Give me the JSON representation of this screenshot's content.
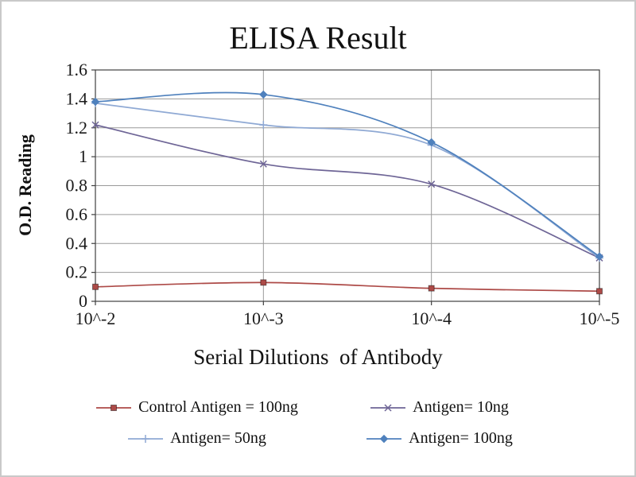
{
  "chart_data": {
    "type": "line",
    "title": "ELISA Result",
    "xlabel": "Serial Dilutions  of Antibody",
    "ylabel": "O.D. Reading",
    "categories": [
      "10^-2",
      "10^-3",
      "10^-4",
      "10^-5"
    ],
    "ylim": [
      0,
      1.6
    ],
    "yticks": [
      "0",
      "0.2",
      "0.4",
      "0.6",
      "0.8",
      "1",
      "1.2",
      "1.4",
      "1.6"
    ],
    "grid": true,
    "legend_position": "bottom",
    "colors": {
      "grid": "#9a9a9a",
      "axis": "#3f3f3f",
      "text": "#1a1a1a"
    },
    "series": [
      {
        "name": "Control Antigen = 100ng",
        "marker": "square",
        "color": "#ad4a47",
        "values": [
          0.1,
          0.13,
          0.09,
          0.07
        ]
      },
      {
        "name": "Antigen= 10ng",
        "marker": "x",
        "color": "#6e6596",
        "values": [
          1.22,
          0.95,
          0.81,
          0.3
        ]
      },
      {
        "name": "Antigen= 50ng",
        "marker": "plus",
        "color": "#8fa9d4",
        "values": [
          1.37,
          1.22,
          1.08,
          0.3
        ]
      },
      {
        "name": "Antigen= 100ng",
        "marker": "diamond",
        "color": "#4f81bd",
        "values": [
          1.38,
          1.43,
          1.1,
          0.31
        ]
      }
    ]
  }
}
